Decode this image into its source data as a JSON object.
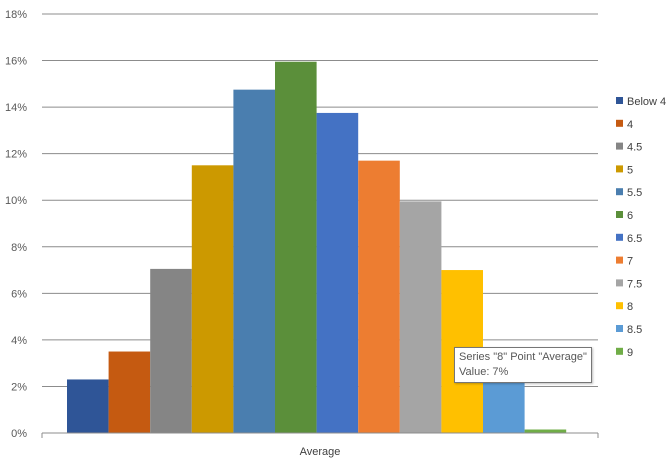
{
  "chart_data": {
    "type": "bar",
    "categories": [
      "Average"
    ],
    "y_unit": "%",
    "ylim": [
      0,
      18
    ],
    "y_ticks": [
      0,
      2,
      4,
      6,
      8,
      10,
      12,
      14,
      16,
      18
    ],
    "y_tick_labels": [
      "0%",
      "2%",
      "4%",
      "6%",
      "8%",
      "10%",
      "12%",
      "14%",
      "16%",
      "18%"
    ],
    "grid": true,
    "legend_position": "right",
    "series": [
      {
        "name": "Below 4",
        "values": [
          2.3
        ],
        "color": "#2f5597"
      },
      {
        "name": "4",
        "values": [
          3.5
        ],
        "color": "#c55a11"
      },
      {
        "name": "4.5",
        "values": [
          7.05
        ],
        "color": "#858585"
      },
      {
        "name": "5",
        "values": [
          11.5
        ],
        "color": "#cc9900"
      },
      {
        "name": "5.5",
        "values": [
          14.75
        ],
        "color": "#4a7eaf"
      },
      {
        "name": "6",
        "values": [
          15.95
        ],
        "color": "#5b8f3a"
      },
      {
        "name": "6.5",
        "values": [
          13.75
        ],
        "color": "#4472c4"
      },
      {
        "name": "7",
        "values": [
          11.7
        ],
        "color": "#ed7d31"
      },
      {
        "name": "7.5",
        "values": [
          9.95
        ],
        "color": "#a5a5a5"
      },
      {
        "name": "8",
        "values": [
          7.0
        ],
        "color": "#ffc000"
      },
      {
        "name": "8.5",
        "values": [
          2.4
        ],
        "color": "#5b9bd5"
      },
      {
        "name": "9",
        "values": [
          0.15
        ],
        "color": "#70ad47"
      }
    ]
  },
  "tooltip": {
    "line1": "Series \"8\" Point \"Average\"",
    "line2": "Value: 7%"
  }
}
